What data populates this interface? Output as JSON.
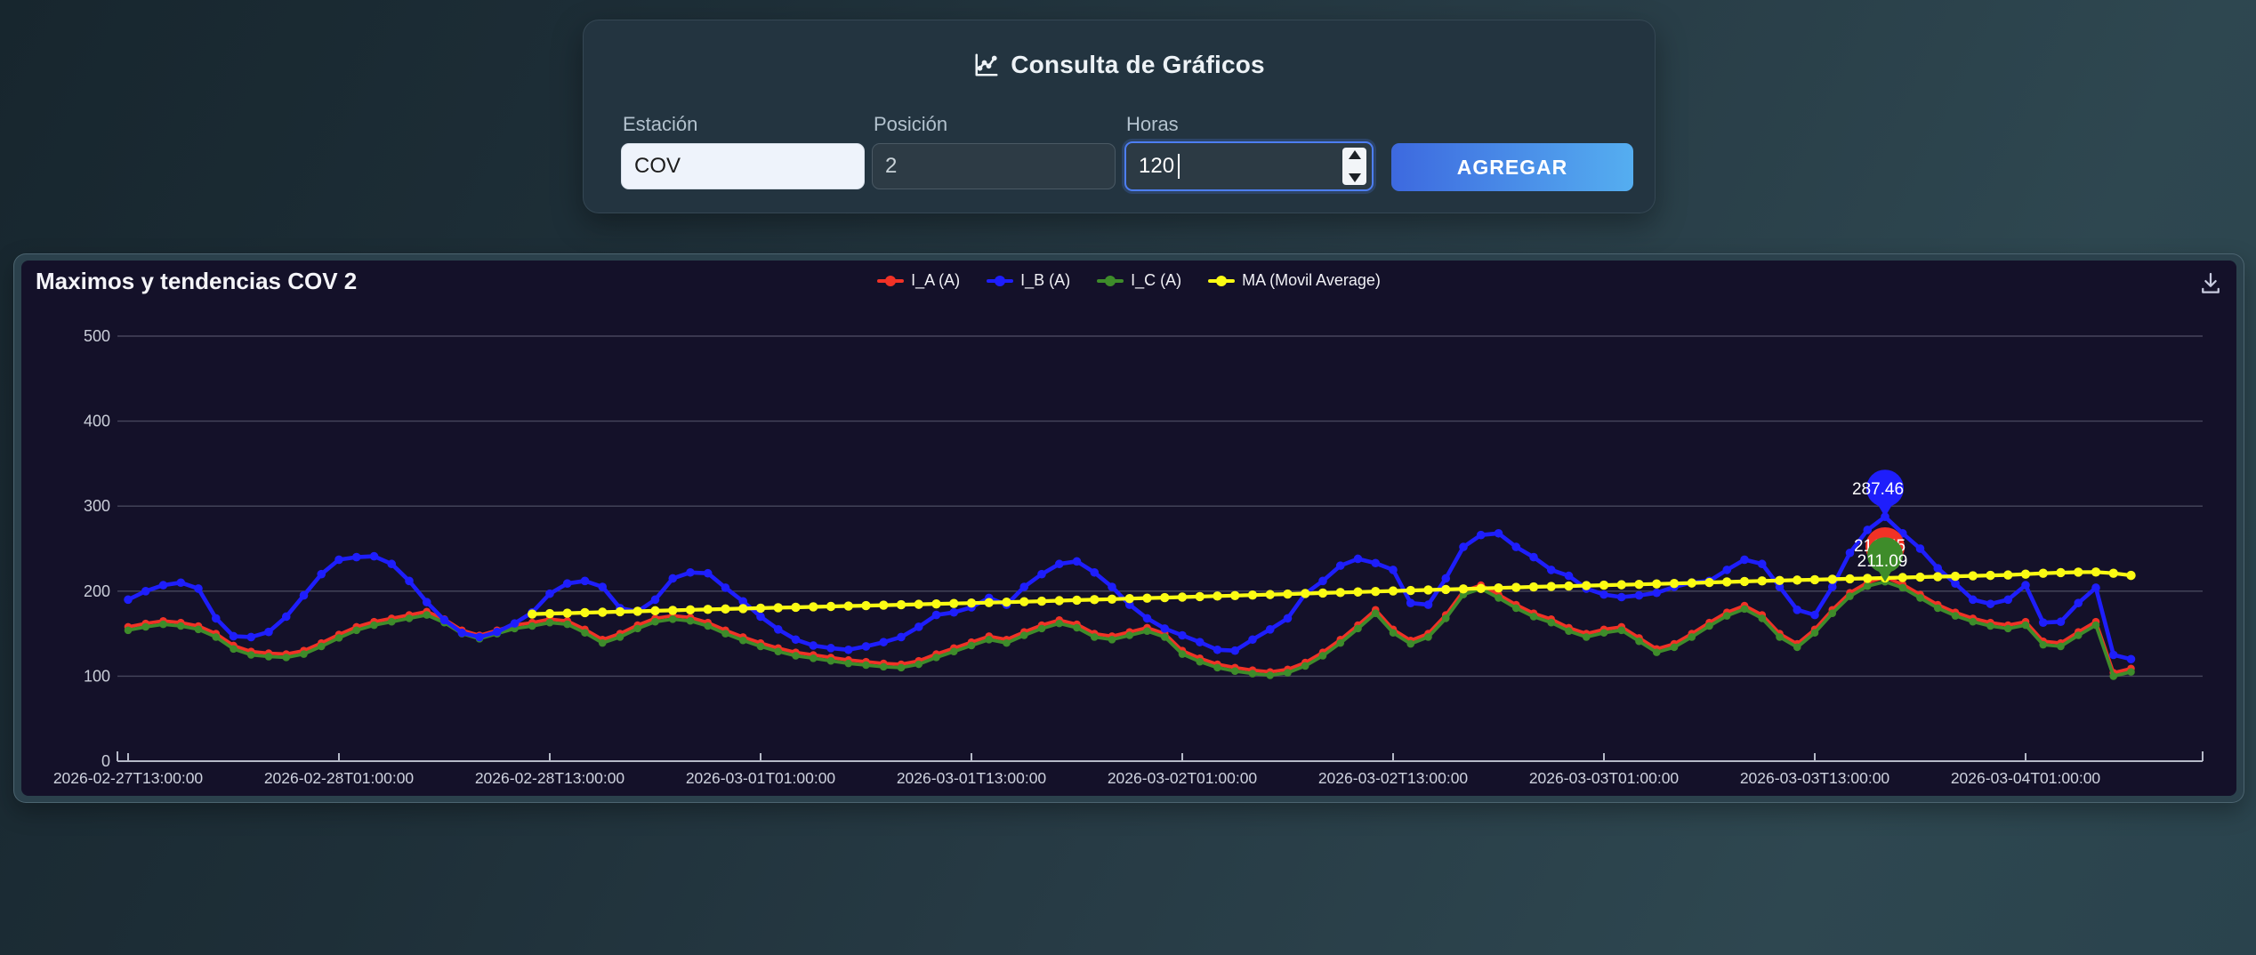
{
  "form": {
    "title": "Consulta de Gráficos",
    "title_icon": "line-chart-icon",
    "fields": [
      {
        "label": "Estación",
        "value": "COV",
        "type": "text"
      },
      {
        "label": "Posición",
        "value": "2",
        "type": "text"
      },
      {
        "label": "Horas",
        "value": "120",
        "type": "number",
        "focused": true
      }
    ],
    "submit_label": "AGREGAR"
  },
  "chart_panel": {
    "title": "Maximos y tendencias COV 2",
    "download_icon": "download-icon"
  },
  "colors": {
    "series_red": "#f13226",
    "series_blue": "#1e1efc",
    "series_green": "#3e8c2a",
    "series_yellow": "#fbfb14",
    "button_gradient_start": "#3d69df",
    "button_gradient_end": "#55aef0",
    "focus_ring": "#4d7ef2",
    "chart_background": "#141129",
    "panel_rim": "#2b414c",
    "card_background": "#233440"
  },
  "chart_data": {
    "type": "line",
    "title": "Maximos y tendencias COV 2",
    "x_start": "2026-02-27T13:00:00",
    "x_interval_hours": 1,
    "x_tick_labels": [
      "2026-02-27T13:00:00",
      "2026-02-28T01:00:00",
      "2026-02-28T13:00:00",
      "2026-03-01T01:00:00",
      "2026-03-01T13:00:00",
      "2026-03-02T01:00:00",
      "2026-03-02T13:00:00",
      "2026-03-03T01:00:00",
      "2026-03-03T13:00:00",
      "2026-03-04T01:00:00"
    ],
    "x_ticks_every_points": 12,
    "ylim": [
      0,
      500
    ],
    "y_ticks": [
      0,
      100,
      200,
      300,
      400,
      500
    ],
    "grid": true,
    "legend_position": "top-center",
    "series": [
      {
        "name": "I_A (A)",
        "color": "#f13226",
        "values": [
          158,
          162,
          165,
          163,
          159,
          150,
          136,
          129,
          127,
          126,
          130,
          139,
          149,
          158,
          164,
          168,
          172,
          176,
          167,
          154,
          148,
          154,
          160,
          163,
          167,
          165,
          155,
          143,
          150,
          160,
          168,
          171,
          169,
          163,
          154,
          146,
          139,
          133,
          128,
          125,
          122,
          119,
          117,
          115,
          114,
          118,
          126,
          133,
          140,
          147,
          143,
          152,
          160,
          166,
          161,
          150,
          147,
          152,
          157,
          150,
          130,
          121,
          114,
          110,
          107,
          105,
          108,
          116,
          128,
          143,
          160,
          178,
          155,
          142,
          150,
          172,
          200,
          207,
          196,
          184,
          174,
          167,
          157,
          150,
          155,
          158,
          145,
          132,
          138,
          150,
          163,
          175,
          183,
          172,
          150,
          138,
          155,
          178,
          198,
          210,
          216.55,
          208,
          196,
          184,
          175,
          168,
          163,
          160,
          164,
          141,
          139,
          152,
          164,
          104,
          109
        ]
      },
      {
        "name": "I_B (A)",
        "color": "#1e1efc",
        "values": [
          190,
          200,
          207,
          210,
          203,
          168,
          147,
          146,
          152,
          170,
          195,
          220,
          237,
          240,
          241,
          232,
          212,
          187,
          166,
          151,
          146,
          152,
          162,
          175,
          197,
          209,
          212,
          205,
          180,
          176,
          190,
          215,
          222,
          221,
          204,
          188,
          170,
          155,
          143,
          136,
          133,
          131,
          135,
          140,
          146,
          158,
          172,
          175,
          181,
          192,
          184,
          205,
          220,
          232,
          235,
          222,
          205,
          184,
          168,
          156,
          148,
          140,
          131,
          130,
          143,
          155,
          168,
          197,
          212,
          230,
          238,
          233,
          225,
          186,
          184,
          215,
          252,
          266,
          268,
          252,
          240,
          225,
          218,
          203,
          196,
          193,
          195,
          198,
          205,
          210,
          212,
          225,
          237,
          232,
          205,
          178,
          172,
          205,
          245,
          272,
          287.46,
          268,
          250,
          227,
          209,
          190,
          185,
          190,
          207,
          163,
          164,
          186,
          204,
          125,
          120
        ]
      },
      {
        "name": "I_C (A)",
        "color": "#3e8c2a",
        "values": [
          154,
          158,
          161,
          159,
          155,
          146,
          132,
          125,
          123,
          122,
          126,
          135,
          145,
          154,
          160,
          164,
          168,
          172,
          163,
          150,
          144,
          150,
          156,
          159,
          163,
          161,
          151,
          139,
          146,
          156,
          164,
          167,
          165,
          159,
          150,
          142,
          135,
          129,
          124,
          121,
          118,
          115,
          113,
          111,
          110,
          114,
          122,
          129,
          136,
          143,
          139,
          148,
          156,
          162,
          157,
          146,
          143,
          148,
          153,
          146,
          126,
          117,
          110,
          106,
          103,
          101,
          104,
          112,
          124,
          139,
          156,
          174,
          151,
          138,
          146,
          168,
          196,
          203,
          192,
          180,
          170,
          163,
          153,
          146,
          151,
          154,
          141,
          128,
          134,
          146,
          159,
          171,
          179,
          168,
          146,
          134,
          151,
          174,
          194,
          206,
          211.09,
          204,
          192,
          180,
          171,
          164,
          159,
          156,
          160,
          137,
          135,
          148,
          160,
          100,
          105
        ]
      },
      {
        "name": "MA (Movil Average)",
        "color": "#fbfb14",
        "values": [
          null,
          null,
          null,
          null,
          null,
          null,
          null,
          null,
          null,
          null,
          null,
          null,
          null,
          null,
          null,
          null,
          null,
          null,
          null,
          null,
          null,
          null,
          null,
          173,
          173.6,
          174.1,
          174.7,
          175.2,
          175.8,
          176.3,
          176.9,
          177.4,
          178,
          178.5,
          179,
          179.5,
          180,
          180.5,
          181,
          181.5,
          182,
          182.5,
          183,
          183.5,
          184,
          184.5,
          185,
          185.5,
          186,
          186.5,
          187,
          187.6,
          188.2,
          188.8,
          189.4,
          190,
          190.6,
          191.2,
          191.8,
          192.4,
          193,
          193.6,
          194.2,
          194.8,
          195.4,
          196,
          196.6,
          197.2,
          197.8,
          198.4,
          199,
          199.6,
          200.2,
          200.8,
          201.4,
          202,
          202.6,
          203.2,
          203.8,
          204.4,
          205,
          205.5,
          206,
          206.5,
          207,
          207.5,
          208,
          208.5,
          209,
          209.6,
          210.2,
          210.8,
          211.4,
          212,
          212.5,
          213,
          213.5,
          214,
          214.5,
          215,
          215.5,
          216,
          216.5,
          217,
          217.5,
          218,
          218.5,
          219,
          220,
          221,
          221.8,
          222.3,
          222.5,
          221,
          218.5
        ]
      }
    ],
    "annotations": [
      {
        "series": "I_B (A)",
        "label": "287.46",
        "index": 100
      },
      {
        "series": "I_A (A)",
        "label": "216.55",
        "index": 100
      },
      {
        "series": "I_C (A)",
        "label": "211.09",
        "index": 100
      }
    ]
  }
}
